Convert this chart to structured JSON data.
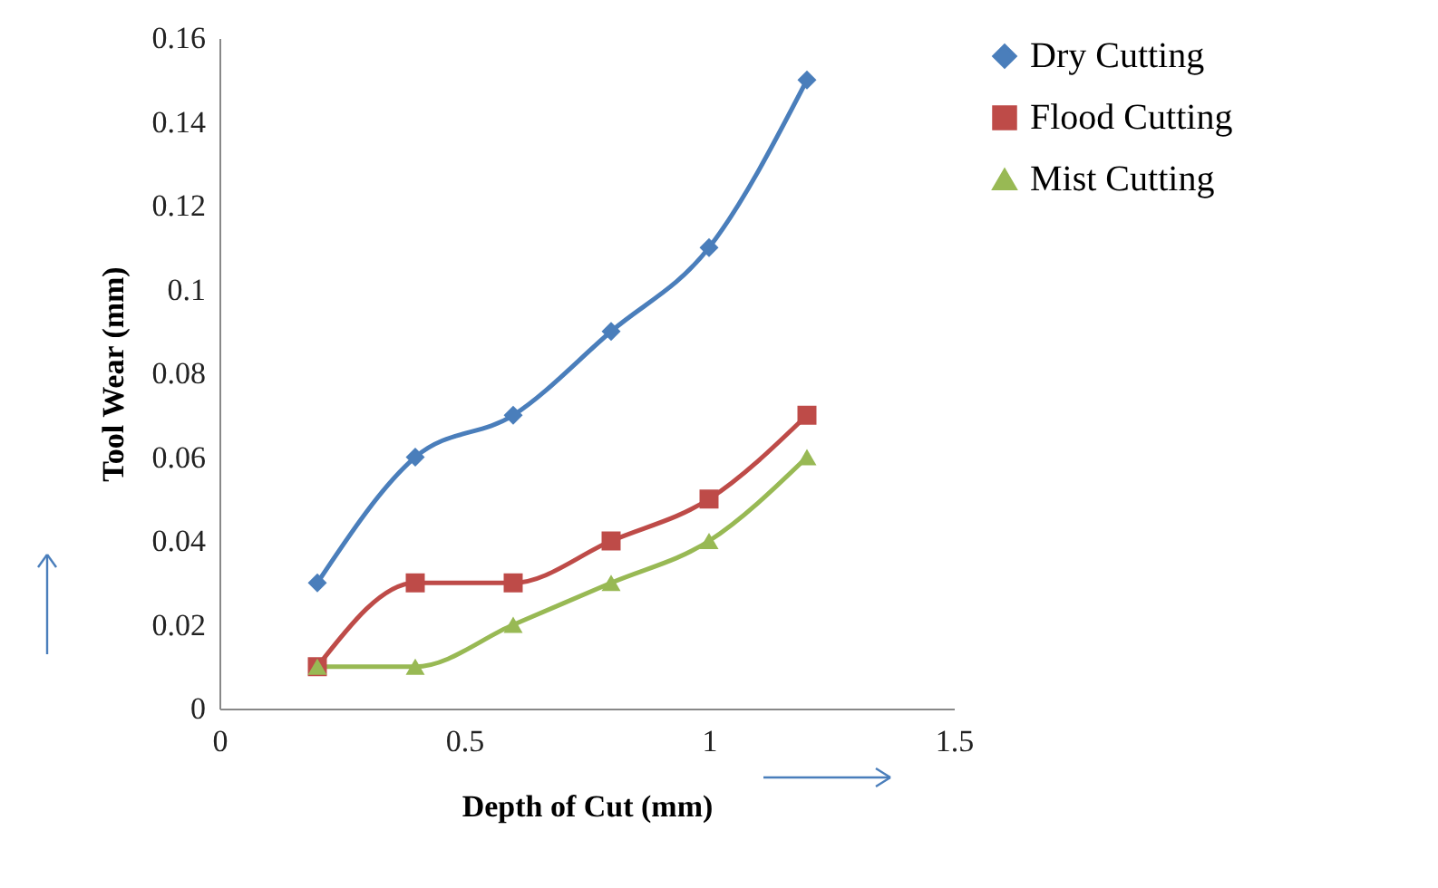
{
  "chart_data": {
    "type": "line",
    "xlabel": "Depth of Cut (mm)",
    "ylabel": "Tool Wear (mm)",
    "x": [
      0.2,
      0.4,
      0.6,
      0.8,
      1.0,
      1.2
    ],
    "series": [
      {
        "name": "Dry Cutting",
        "color": "#4a7ebb",
        "marker": "diamond",
        "values": [
          0.03,
          0.06,
          0.07,
          0.09,
          0.11,
          0.15
        ]
      },
      {
        "name": "Flood Cutting",
        "color": "#be4b48",
        "marker": "square",
        "values": [
          0.01,
          0.03,
          0.03,
          0.04,
          0.05,
          0.07
        ]
      },
      {
        "name": "Mist Cutting",
        "color": "#98b954",
        "marker": "triangle",
        "values": [
          0.01,
          0.01,
          0.02,
          0.03,
          0.04,
          0.06
        ]
      }
    ],
    "xlim": [
      0,
      1.5
    ],
    "xticks": [
      0,
      0.5,
      1,
      1.5
    ],
    "ylim": [
      0,
      0.16
    ],
    "yticks": [
      0,
      0.02,
      0.04,
      0.06,
      0.08,
      0.1,
      0.12,
      0.14,
      0.16
    ],
    "grid": false,
    "legend": "right"
  }
}
